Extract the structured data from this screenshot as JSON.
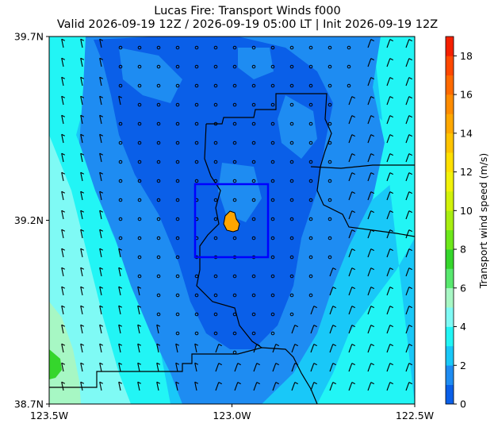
{
  "figure": {
    "title_line1": "Lucas Fire: Transport Winds f000",
    "title_line2": "Valid 2026-09-19 12Z / 2026-09-19 05:00 LT | Init 2026-09-19 12Z"
  },
  "chart_data": {
    "type": "heatmap",
    "title": "Lucas Fire: Transport Winds f000",
    "subtitle": "Valid 2026-09-19 12Z / 2026-09-19 05:00 LT | Init 2026-09-19 12Z",
    "xlim": [
      -123.5,
      -122.5
    ],
    "ylim": [
      38.7,
      39.7
    ],
    "x_ticks": [
      {
        "value": -123.5,
        "label": "123.5W"
      },
      {
        "value": -123.0,
        "label": "123.0W"
      },
      {
        "value": -122.5,
        "label": "122.5W"
      }
    ],
    "y_ticks": [
      {
        "value": 38.7,
        "label": "38.7N"
      },
      {
        "value": 39.2,
        "label": "39.2N"
      },
      {
        "value": 39.7,
        "label": "39.7N"
      }
    ],
    "colorbar": {
      "label": "Transport wind speed (m/s)",
      "min": 0,
      "max": 19,
      "ticks": [
        0,
        2,
        4,
        6,
        8,
        10,
        12,
        14,
        16,
        18
      ],
      "levels": [
        {
          "from": 0,
          "to": 1,
          "color": "#0a5fe8"
        },
        {
          "from": 1,
          "to": 2,
          "color": "#1e8cf2"
        },
        {
          "from": 2,
          "to": 3,
          "color": "#19c8f8"
        },
        {
          "from": 3,
          "to": 4,
          "color": "#22f5f5"
        },
        {
          "from": 4,
          "to": 5,
          "color": "#7ffaf5"
        },
        {
          "from": 5,
          "to": 6,
          "color": "#a7f7c4"
        },
        {
          "from": 6,
          "to": 7,
          "color": "#58e86e"
        },
        {
          "from": 7,
          "to": 8,
          "color": "#35d62c"
        },
        {
          "from": 8,
          "to": 9,
          "color": "#6de81a"
        },
        {
          "from": 9,
          "to": 10,
          "color": "#a8ee10"
        },
        {
          "from": 10,
          "to": 11,
          "color": "#d2f20a"
        },
        {
          "from": 11,
          "to": 12,
          "color": "#f2f20a"
        },
        {
          "from": 12,
          "to": 13,
          "color": "#ffe000"
        },
        {
          "from": 13,
          "to": 14,
          "color": "#ffc400"
        },
        {
          "from": 14,
          "to": 15,
          "color": "#ffa800"
        },
        {
          "from": 15,
          "to": 16,
          "color": "#ff8c00"
        },
        {
          "from": 16,
          "to": 17,
          "color": "#ff6a00"
        },
        {
          "from": 17,
          "to": 18,
          "color": "#ff4800"
        },
        {
          "from": 18,
          "to": 19,
          "color": "#f52000"
        }
      ]
    },
    "field_regions": [
      {
        "speed_range": "0-1 m/s",
        "extent": "central valley core from about 39.0N to 39.7N, 123.2W to 122.8W"
      },
      {
        "speed_range": "1-2 m/s",
        "extent": "broad band surrounding the core"
      },
      {
        "speed_range": "2-4 m/s",
        "extent": "western and eastern flanks"
      },
      {
        "speed_range": "5-7 m/s",
        "extent": "southwest corner near 38.8N 123.5W"
      }
    ],
    "analysis_box": {
      "lon": [
        -123.1,
        -122.9
      ],
      "lat": [
        39.08,
        39.28
      ],
      "color": "#0000ff"
    },
    "fire_perimeter": {
      "lon": -123.0,
      "lat": 39.2,
      "color": "#ffa500"
    },
    "wind_barbs": "grid of station symbols every ~0.05 deg; calm circles in core, half-barbs on flanks"
  }
}
